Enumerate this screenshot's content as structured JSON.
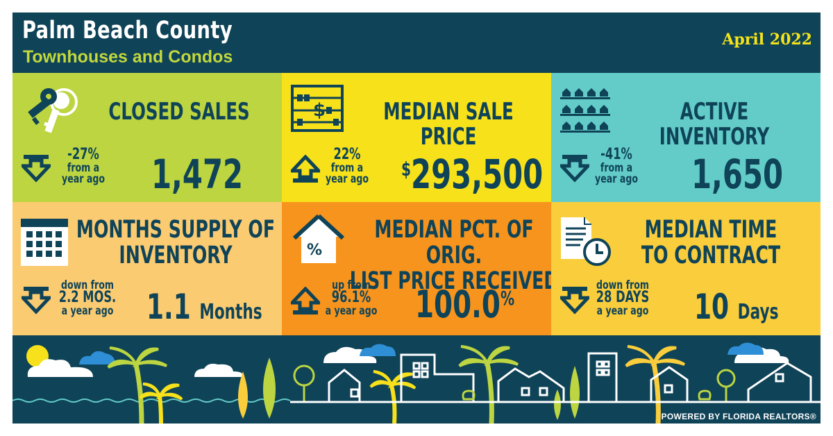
{
  "header": {
    "title": "Palm Beach County",
    "subtitle": "Townhouses and Condos",
    "date": "April 2022"
  },
  "tiles": {
    "closed_sales": {
      "title": "CLOSED SALES",
      "change_value": "-27%",
      "change_l1": "from a",
      "change_l2": "year ago",
      "direction": "down",
      "value": "1,472",
      "icon": "keys-icon",
      "color": "#bcd541"
    },
    "median_sale_price": {
      "title": "MEDIAN SALE PRICE",
      "change_value": "22%",
      "change_l1": "from a",
      "change_l2": "year ago",
      "direction": "up",
      "currency": "$",
      "value": "293,500",
      "icon": "abacus-icon",
      "color": "#f6e11b"
    },
    "active_inventory": {
      "title": "ACTIVE INVENTORY",
      "change_value": "-41%",
      "change_l1": "from a",
      "change_l2": "year ago",
      "direction": "down",
      "value": "1,650",
      "icon": "houses-rows-icon",
      "color": "#63ccc8"
    },
    "months_supply": {
      "title_l1": "MONTHS SUPPLY OF",
      "title_l2": "INVENTORY",
      "change_l1": "down from",
      "change_value": "2.2 MOS.",
      "change_l2": "a year ago",
      "direction": "down",
      "value": "1.1",
      "unit": "Months",
      "icon": "calendar-icon",
      "color": "#fbcb72"
    },
    "pct_list_price": {
      "title_l1": "MEDIAN PCT. OF ORIG.",
      "title_l2": "LIST PRICE RECEIVED",
      "change_l1": "up from",
      "change_value": "96.1%",
      "change_l2": "a year ago",
      "direction": "up",
      "value": "100.0",
      "suffix": "%",
      "icon": "percent-house-icon",
      "color": "#f7941d"
    },
    "time_to_contract": {
      "title_l1": "MEDIAN TIME",
      "title_l2": "TO CONTRACT",
      "change_l1": "down from",
      "change_value": "28 DAYS",
      "change_l2": "a year ago",
      "direction": "down",
      "value": "10",
      "unit": "Days",
      "icon": "document-clock-icon",
      "color": "#f9cd3c"
    }
  },
  "footer": {
    "powered_by": "POWERED BY FLORIDA REALTORS®",
    "scene_icon": "beach-town-skyline-icon"
  }
}
